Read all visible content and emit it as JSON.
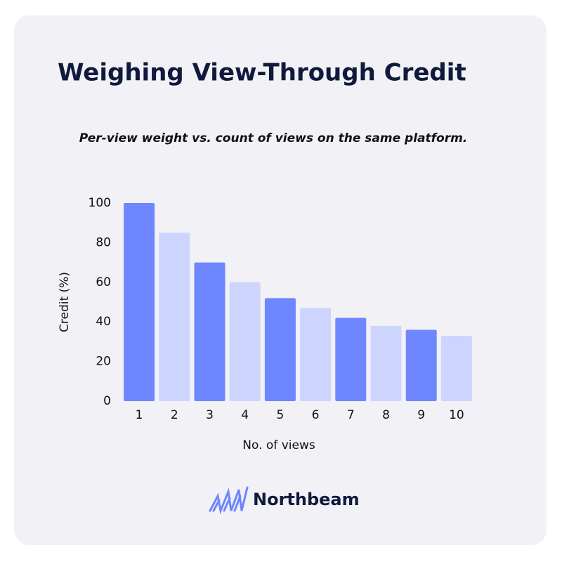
{
  "chart_data": {
    "type": "bar",
    "title": "Weighing View-Through Credit",
    "subtitle": "Per-view weight vs. count of views on the same platform.",
    "x_label": "No. of views",
    "y_label": "Credit (%)",
    "categories": [
      "1",
      "2",
      "3",
      "4",
      "5",
      "6",
      "7",
      "8",
      "9",
      "10"
    ],
    "values": [
      100,
      85,
      70,
      60,
      52,
      47,
      42,
      38,
      36,
      33
    ],
    "colors": [
      "#6e86ff",
      "#cdd5ff"
    ],
    "ylim": [
      0,
      100
    ],
    "yticks": [
      0,
      20,
      40,
      60,
      80,
      100
    ],
    "grid": false
  },
  "brand": "Northbeam"
}
